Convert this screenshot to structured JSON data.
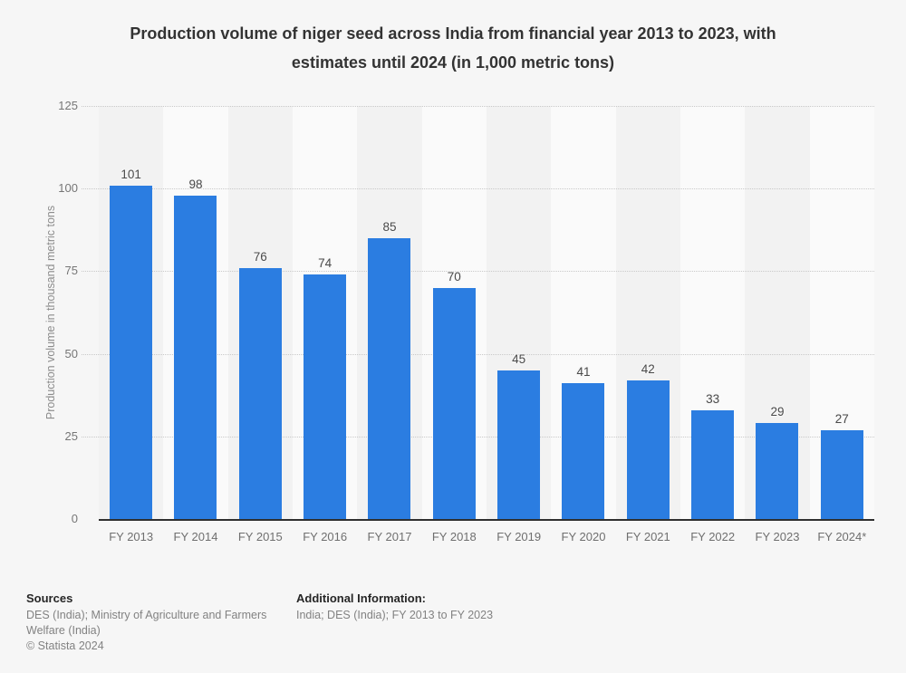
{
  "title": {
    "line1": "Production volume of niger seed across India from financial year 2013 to 2023, with",
    "line2": "estimates until 2024 (in 1,000 metric tons)"
  },
  "chart_data": {
    "type": "bar",
    "title": "Production volume of niger seed across India from financial year 2013 to 2023, with estimates until 2024 (in 1,000 metric tons)",
    "categories": [
      "FY 2013",
      "FY 2014",
      "FY 2015",
      "FY 2016",
      "FY 2017",
      "FY 2018",
      "FY 2019",
      "FY 2020",
      "FY 2021",
      "FY 2022",
      "FY 2023",
      "FY 2024*"
    ],
    "values": [
      101,
      98,
      76,
      74,
      85,
      70,
      45,
      41,
      42,
      33,
      29,
      27
    ],
    "xlabel": "",
    "ylabel": "Production volume in thousand metric tons",
    "ylim": [
      0,
      125
    ],
    "yticks": [
      0,
      25,
      50,
      75,
      100,
      125
    ],
    "grid": true,
    "legend": false,
    "colors": {
      "bar": "#2b7de1",
      "stripe_even": "#f2f2f2",
      "stripe_odd": "#fafafa",
      "gridline": "#c9c9c9",
      "axis": "#2f2f2f",
      "background": "#f6f6f6"
    }
  },
  "footer": {
    "sources_label": "Sources",
    "sources_text": "DES (India); Ministry of Agriculture and Farmers Welfare (India)",
    "copyright": "© Statista 2024",
    "additional_label": "Additional Information:",
    "additional_text": "India; DES (India); FY 2013 to FY 2023"
  }
}
